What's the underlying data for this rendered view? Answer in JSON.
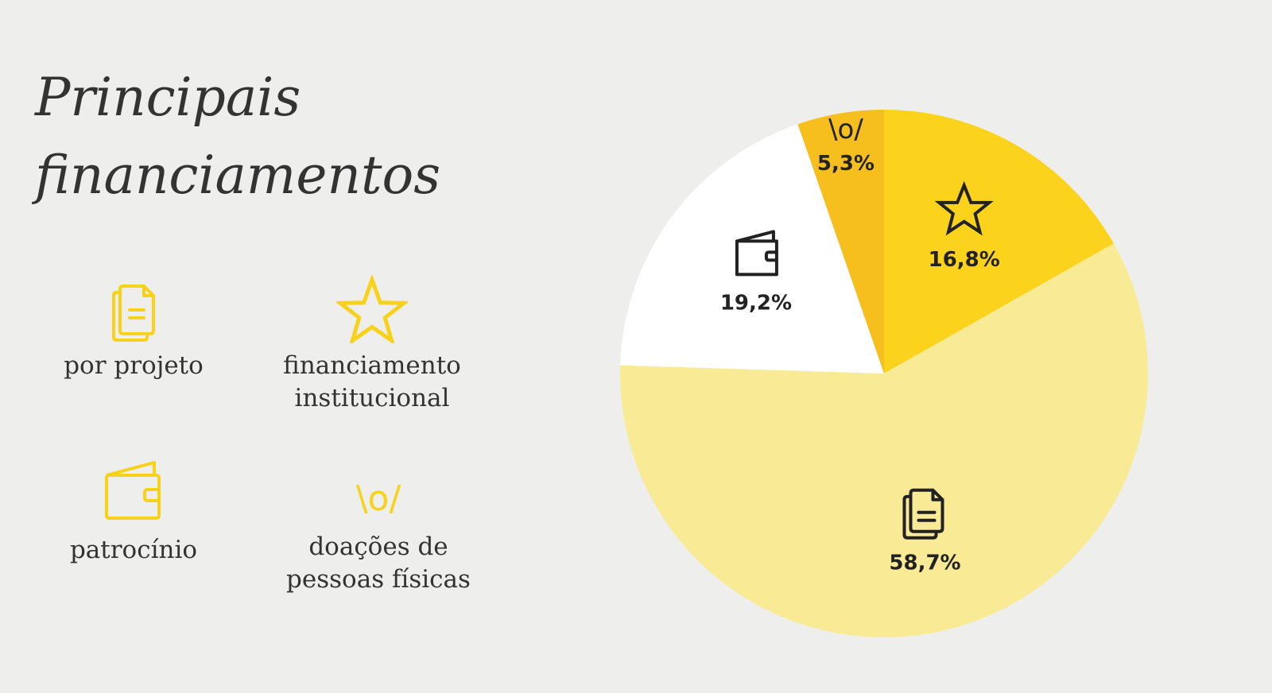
{
  "title": {
    "line1": "Principais",
    "line2": "financiamentos"
  },
  "legend": [
    {
      "label": "por projeto",
      "icon": "documents-icon"
    },
    {
      "label": "financiamento\ninstitucional",
      "icon": "star-icon"
    },
    {
      "label": "patrocínio",
      "icon": "wallet-icon"
    },
    {
      "label": "doações de\npessoas físicas",
      "icon": "cheer-icon",
      "symbol": "\\o/"
    }
  ],
  "colors": {
    "icon": "#f7d11a",
    "text": "#333333",
    "background": "#eeeeed"
  },
  "chart_data": {
    "type": "pie",
    "start_angle_deg": 0,
    "direction": "clockwise",
    "slices": [
      {
        "key": "institucional",
        "value": 16.8,
        "label": "16,8%",
        "icon": "star-icon",
        "color": "#fbd31c"
      },
      {
        "key": "projeto",
        "value": 58.7,
        "label": "58,7%",
        "icon": "documents-icon",
        "color": "#f9eb96"
      },
      {
        "key": "patrocinio",
        "value": 19.2,
        "label": "19,2%",
        "icon": "wallet-icon",
        "color": "#ffffff"
      },
      {
        "key": "doacoes",
        "value": 5.3,
        "label": "5,3%",
        "icon": "cheer-icon",
        "symbol": "\\o/",
        "color": "#f7bf1d"
      }
    ]
  }
}
